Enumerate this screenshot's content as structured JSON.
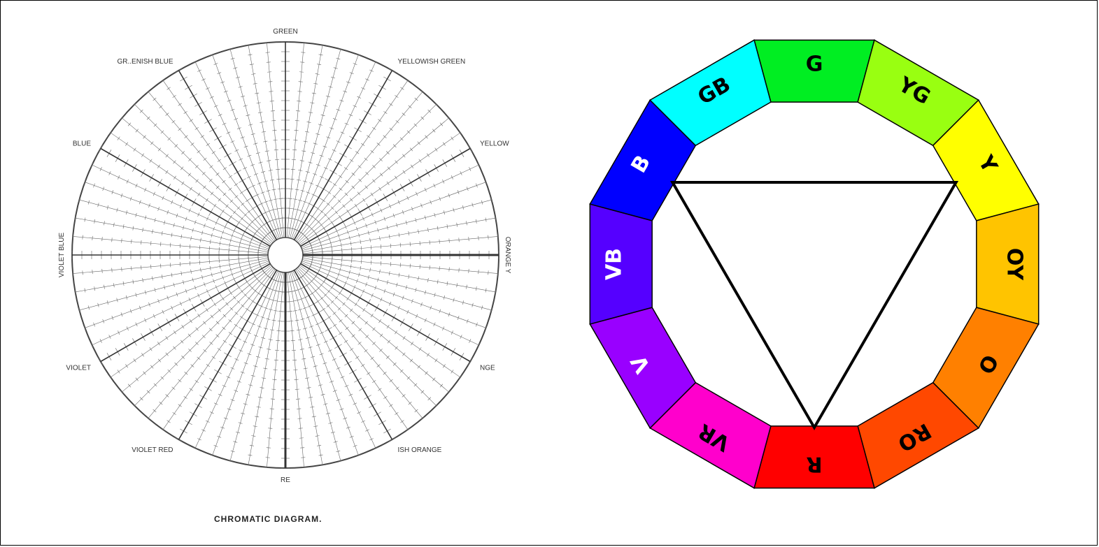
{
  "chromatic_diagram": {
    "caption": "CHROMATIC DIAGRAM.",
    "labels": [
      {
        "text": "GREEN",
        "angle": 90
      },
      {
        "text": "YELLOWISH GREEN",
        "angle": 60
      },
      {
        "text": "YELLOW",
        "angle": 30
      },
      {
        "text": "ORANGE Y",
        "angle": 0
      },
      {
        "text": "NGE",
        "angle": -30
      },
      {
        "text": "ISH ORANGE",
        "angle": -60
      },
      {
        "text": "RE",
        "angle": -90
      },
      {
        "text": "VIOLET RED",
        "angle": -120
      },
      {
        "text": "VIOLET",
        "angle": -150
      },
      {
        "text": "VIOLET BLUE",
        "angle": 180
      },
      {
        "text": "BLUE",
        "angle": 150
      },
      {
        "text": "GR..ENISH BLUE",
        "angle": 120
      }
    ]
  },
  "color_wheel": {
    "segments": [
      {
        "label": "G",
        "color": "#00ee22",
        "text_color": "#000000"
      },
      {
        "label": "YG",
        "color": "#99ff11",
        "text_color": "#000000"
      },
      {
        "label": "Y",
        "color": "#ffff00",
        "text_color": "#000000"
      },
      {
        "label": "OY",
        "color": "#ffc400",
        "text_color": "#000000"
      },
      {
        "label": "O",
        "color": "#ff8000",
        "text_color": "#000000"
      },
      {
        "label": "RO",
        "color": "#ff4800",
        "text_color": "#000000"
      },
      {
        "label": "R",
        "color": "#ff0000",
        "text_color": "#000000"
      },
      {
        "label": "VR",
        "color": "#ff00cc",
        "text_color": "#000000"
      },
      {
        "label": "V",
        "color": "#9900ff",
        "text_color": "#ffffff"
      },
      {
        "label": "VB",
        "color": "#5500ff",
        "text_color": "#ffffff"
      },
      {
        "label": "B",
        "color": "#0000ff",
        "text_color": "#ffffff"
      },
      {
        "label": "GB",
        "color": "#00ffff",
        "text_color": "#000000"
      }
    ],
    "triangle_vertices": [
      "B",
      "Y",
      "R"
    ]
  }
}
